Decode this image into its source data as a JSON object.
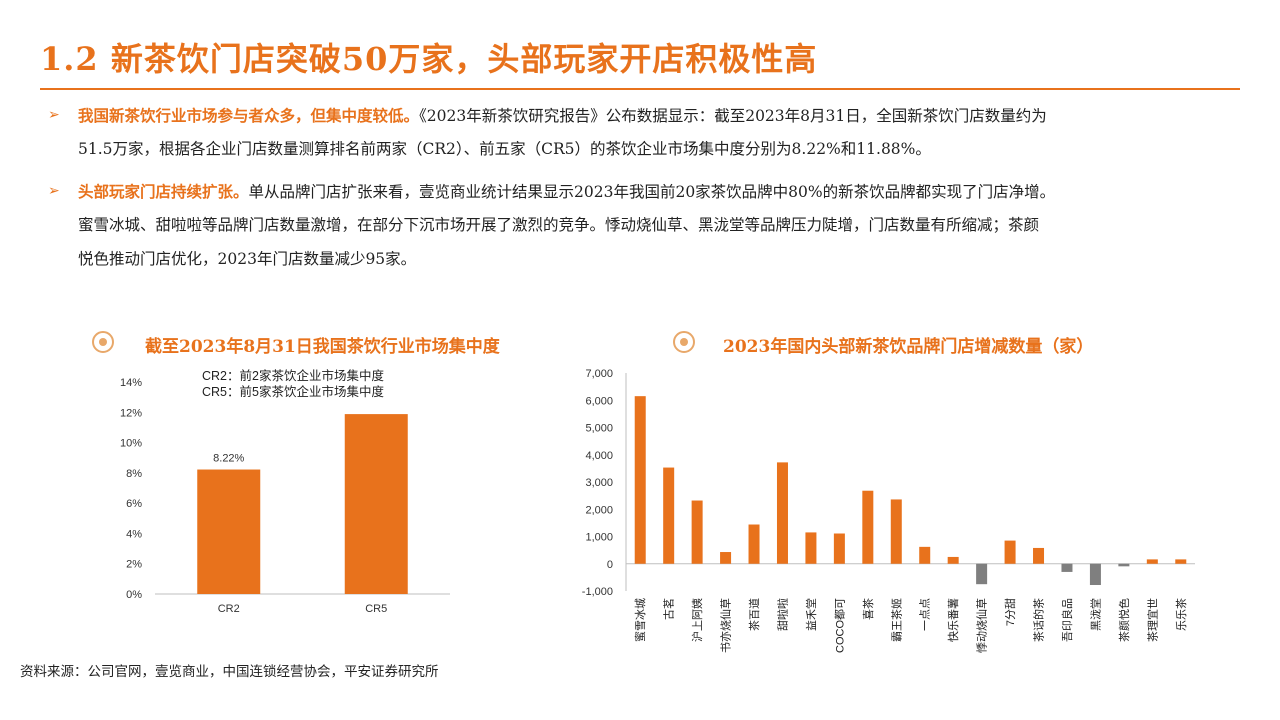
{
  "page": {
    "title": "1.2 新茶饮门店突破50万家，头部玩家开店积极性高",
    "bullets": [
      {
        "bold": "我国新茶饮行业市场参与者众多，但集中度较低。",
        "line1": "《2023年新茶饮研究报告》公布数据显示：截至2023年8月31日，全国新茶饮门店数量约为",
        "line2": "51.5万家，根据各企业门店数量测算排名前两家（CR2）、前五家（CR5）的茶饮企业市场集中度分别为8.22%和11.88%。"
      },
      {
        "bold": "头部玩家门店持续扩张。",
        "line1": "单从品牌门店扩张来看，壹览商业统计结果显示2023年我国前20家茶饮品牌中80%的新茶饮品牌都实现了门店净增。",
        "line2": "蜜雪冰城、甜啦啦等品牌门店数量激增，在部分下沉市场开展了激烈的竞争。悸动烧仙草、黑泷堂等品牌压力陡增，门店数量有所缩减；茶颜",
        "line3": "悦色推动门店优化，2023年门店数量减少95家。"
      }
    ],
    "source": "资料来源：公司官网，壹览商业，中国连锁经营协会，平安证券研究所"
  },
  "colors": {
    "accent": "#E8721C",
    "bar": "#E8721C",
    "negative": "#7F7F7F"
  },
  "chart_data": [
    {
      "type": "bar",
      "title": "截至2023年8月31日我国茶饮行业市场集中度",
      "categories": [
        "CR2",
        "CR5"
      ],
      "values": [
        8.22,
        11.88
      ],
      "data_labels": [
        "8.22%",
        ""
      ],
      "ylim": [
        0,
        14
      ],
      "yticks": [
        "0%",
        "2%",
        "4%",
        "6%",
        "8%",
        "10%",
        "12%",
        "14%"
      ],
      "ytick_values": [
        0,
        2,
        4,
        6,
        8,
        10,
        12,
        14
      ],
      "legend_text": [
        "CR2：前2家茶饮企业市场集中度",
        "CR5：前5家茶饮企业市场集中度"
      ],
      "legend_position": "top-left",
      "grid": false
    },
    {
      "type": "bar",
      "title": "2023年国内头部新茶饮品牌门店增减数量（家）",
      "categories": [
        "蜜雪冰城",
        "古茗",
        "沪上阿姨",
        "书亦烧仙草",
        "茶百道",
        "甜啦啦",
        "益禾堂",
        "COCO都可",
        "喜茶",
        "霸王茶姬",
        "一点点",
        "快乐番薯",
        "悸动烧仙草",
        "7分甜",
        "茶话的茶",
        "吾印良品",
        "黑泷堂",
        "茶颜悦色",
        "茶理宜世",
        "乐乐茶"
      ],
      "values": [
        6150,
        3530,
        2320,
        430,
        1440,
        3720,
        1150,
        1110,
        2680,
        2360,
        620,
        250,
        -750,
        850,
        580,
        -300,
        -780,
        -95,
        160,
        160
      ],
      "ylim": [
        -1000,
        7000
      ],
      "yticks": [
        "-1,000",
        "0",
        "1,000",
        "2,000",
        "3,000",
        "4,000",
        "5,000",
        "6,000",
        "7,000"
      ],
      "ytick_values": [
        -1000,
        0,
        1000,
        2000,
        3000,
        4000,
        5000,
        6000,
        7000
      ],
      "grid": false
    }
  ]
}
